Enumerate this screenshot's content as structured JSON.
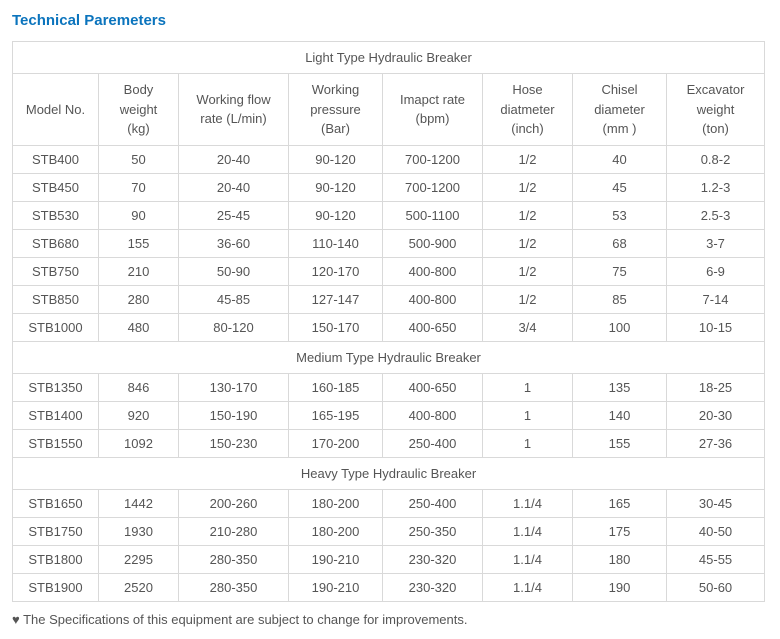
{
  "section_title": "Technical Paremeters",
  "columns": [
    {
      "label": "Model No."
    },
    {
      "label_l1": "Body",
      "label_l2": "weight",
      "label_l3": "(kg)"
    },
    {
      "label_l1": "Working flow",
      "label_l2": "rate (L/min)"
    },
    {
      "label_l1": "Working",
      "label_l2": "pressure",
      "label_l3": "(Bar)"
    },
    {
      "label_l1": "Imapct rate",
      "label_l2": "(bpm)"
    },
    {
      "label_l1": "Hose",
      "label_l2": "diatmeter",
      "label_l3": "(inch)"
    },
    {
      "label_l1": "Chisel",
      "label_l2": "diameter",
      "label_l3": "(mm )"
    },
    {
      "label_l1": "Excavator",
      "label_l2": "weight",
      "label_l3": "(ton)"
    }
  ],
  "groups": [
    {
      "title": "Light Type Hydraulic Breaker",
      "rows": [
        [
          "STB400",
          "50",
          "20-40",
          "90-120",
          "700-1200",
          "1/2",
          "40",
          "0.8-2"
        ],
        [
          "STB450",
          "70",
          "20-40",
          "90-120",
          "700-1200",
          "1/2",
          "45",
          "1.2-3"
        ],
        [
          "STB530",
          "90",
          "25-45",
          "90-120",
          "500-1100",
          "1/2",
          "53",
          "2.5-3"
        ],
        [
          "STB680",
          "155",
          "36-60",
          "110-140",
          "500-900",
          "1/2",
          "68",
          "3-7"
        ],
        [
          "STB750",
          "210",
          "50-90",
          "120-170",
          "400-800",
          "1/2",
          "75",
          "6-9"
        ],
        [
          "STB850",
          "280",
          "45-85",
          "127-147",
          "400-800",
          "1/2",
          "85",
          "7-14"
        ],
        [
          "STB1000",
          "480",
          "80-120",
          "150-170",
          "400-650",
          "3/4",
          "100",
          "10-15"
        ]
      ]
    },
    {
      "title": "Medium Type Hydraulic Breaker",
      "rows": [
        [
          "STB1350",
          "846",
          "130-170",
          "160-185",
          "400-650",
          "1",
          "135",
          "18-25"
        ],
        [
          "STB1400",
          "920",
          "150-190",
          "165-195",
          "400-800",
          "1",
          "140",
          "20-30"
        ],
        [
          "STB1550",
          "1092",
          "150-230",
          "170-200",
          "250-400",
          "1",
          "155",
          "27-36"
        ]
      ]
    },
    {
      "title": "Heavy Type Hydraulic Breaker",
      "rows": [
        [
          "STB1650",
          "1442",
          "200-260",
          "180-200",
          "250-400",
          "1.1/4",
          "165",
          "30-45"
        ],
        [
          "STB1750",
          "1930",
          "210-280",
          "180-200",
          "250-350",
          "1.1/4",
          "175",
          "40-50"
        ],
        [
          "STB1800",
          "2295",
          "280-350",
          "190-210",
          "230-320",
          "1.1/4",
          "180",
          "45-55"
        ],
        [
          "STB1900",
          "2520",
          "280-350",
          "190-210",
          "230-320",
          "1.1/4",
          "190",
          "50-60"
        ]
      ]
    }
  ],
  "footnote": "♥ The Specifications of this equipment are subject to change for improvements."
}
